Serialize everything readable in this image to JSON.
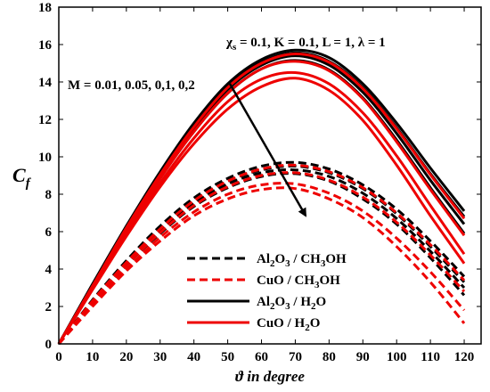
{
  "chart_data": {
    "type": "line",
    "title": "",
    "xlabel": "ϑ in degree",
    "ylabel": "Cf",
    "xlim": [
      0,
      125
    ],
    "ylim": [
      0,
      18
    ],
    "xticks": [
      "0",
      "10",
      "20",
      "30",
      "40",
      "50",
      "60",
      "70",
      "80",
      "90",
      "100",
      "110",
      "120"
    ],
    "yticks": [
      "0",
      "2",
      "4",
      "6",
      "8",
      "10",
      "12",
      "14",
      "16",
      "18"
    ],
    "params_annotation": "χs = 0.1, K = 0.1, L = 1, λ = 1",
    "params_annotation_parts": {
      "chi": "χ",
      "chi_sub": "s",
      "rest": " = 0.1, K = 0.1, L = 1, λ = 1"
    },
    "m_annotation": "M = 0.01, 0.05, 0,1, 0,2",
    "legend": [
      {
        "label": "Al2O3 / CH3OH",
        "color": "#000000",
        "dash": true,
        "parts": [
          {
            "t": "Al"
          },
          {
            "t": "2",
            "sub": true
          },
          {
            "t": "O"
          },
          {
            "t": "3",
            "sub": true
          },
          {
            "t": " / CH"
          },
          {
            "t": "3",
            "sub": true
          },
          {
            "t": "OH"
          }
        ]
      },
      {
        "label": "CuO / CH3OH",
        "color": "#ee0000",
        "dash": true,
        "parts": [
          {
            "t": "CuO / CH"
          },
          {
            "t": "3",
            "sub": true
          },
          {
            "t": "OH"
          }
        ]
      },
      {
        "label": "Al2O3 / H2O",
        "color": "#000000",
        "dash": false,
        "parts": [
          {
            "t": "Al"
          },
          {
            "t": "2",
            "sub": true
          },
          {
            "t": "O"
          },
          {
            "t": "3",
            "sub": true
          },
          {
            "t": " / H"
          },
          {
            "t": "2",
            "sub": true
          },
          {
            "t": "O"
          }
        ]
      },
      {
        "label": "CuO / H2O",
        "color": "#ee0000",
        "dash": false,
        "parts": [
          {
            "t": "CuO / H"
          },
          {
            "t": "2",
            "sub": true
          },
          {
            "t": "O"
          }
        ]
      }
    ],
    "x": [
      0,
      10,
      20,
      30,
      40,
      50,
      60,
      70,
      80,
      90,
      100,
      110,
      120
    ],
    "series": [
      {
        "group": "Al2O3 / CH3OH",
        "color": "#000000",
        "dash": true,
        "values": [
          0,
          2.35,
          4.45,
          6.3,
          7.8,
          8.85,
          9.5,
          9.7,
          9.35,
          8.5,
          7.2,
          5.5,
          3.6
        ]
      },
      {
        "group": "Al2O3 / CH3OH",
        "color": "#000000",
        "dash": true,
        "values": [
          0,
          2.3,
          4.35,
          6.15,
          7.65,
          8.7,
          9.3,
          9.5,
          9.15,
          8.3,
          6.95,
          5.2,
          3.3
        ]
      },
      {
        "group": "Al2O3 / CH3OH",
        "color": "#000000",
        "dash": true,
        "values": [
          0,
          2.25,
          4.3,
          6.05,
          7.5,
          8.55,
          9.15,
          9.3,
          8.95,
          8.05,
          6.7,
          4.95,
          3.0
        ]
      },
      {
        "group": "Al2O3 / CH3OH",
        "color": "#000000",
        "dash": true,
        "values": [
          0,
          2.2,
          4.2,
          5.9,
          7.35,
          8.35,
          8.95,
          9.1,
          8.7,
          7.75,
          6.4,
          4.6,
          2.6
        ]
      },
      {
        "group": "CuO / CH3OH",
        "color": "#ee0000",
        "dash": true,
        "values": [
          0,
          2.3,
          4.35,
          6.15,
          7.65,
          8.7,
          9.35,
          9.55,
          9.2,
          8.35,
          7.0,
          5.3,
          3.4
        ]
      },
      {
        "group": "CuO / CH3OH",
        "color": "#ee0000",
        "dash": true,
        "values": [
          0,
          2.2,
          4.2,
          5.95,
          7.4,
          8.4,
          9.0,
          9.15,
          8.75,
          7.85,
          6.5,
          4.75,
          2.8
        ]
      },
      {
        "group": "CuO / CH3OH",
        "color": "#ee0000",
        "dash": true,
        "values": [
          0,
          2.1,
          4.0,
          5.7,
          7.05,
          8.0,
          8.5,
          8.55,
          8.05,
          7.1,
          5.65,
          3.85,
          1.8
        ]
      },
      {
        "group": "CuO / CH3OH",
        "color": "#ee0000",
        "dash": true,
        "values": [
          0,
          2.0,
          3.9,
          5.5,
          6.85,
          7.75,
          8.25,
          8.3,
          7.75,
          6.75,
          5.2,
          3.3,
          1.1
        ]
      },
      {
        "group": "Al2O3 / H2O",
        "color": "#000000",
        "dash": false,
        "values": [
          0,
          3.2,
          6.3,
          9.2,
          11.8,
          13.9,
          15.2,
          15.7,
          15.3,
          13.9,
          11.8,
          9.4,
          7.1
        ]
      },
      {
        "group": "Al2O3 / H2O",
        "color": "#000000",
        "dash": false,
        "values": [
          0,
          3.15,
          6.25,
          9.1,
          11.65,
          13.75,
          15.05,
          15.55,
          15.1,
          13.7,
          11.55,
          9.1,
          6.8
        ]
      },
      {
        "group": "Al2O3 / H2O",
        "color": "#000000",
        "dash": false,
        "values": [
          0,
          3.1,
          6.15,
          9.0,
          11.5,
          13.6,
          14.9,
          15.4,
          14.9,
          13.45,
          11.25,
          8.75,
          6.4
        ]
      },
      {
        "group": "Al2O3 / H2O",
        "color": "#000000",
        "dash": false,
        "values": [
          0,
          3.05,
          6.05,
          8.85,
          11.35,
          13.4,
          14.7,
          15.15,
          14.65,
          13.15,
          10.9,
          8.35,
          5.9
        ]
      },
      {
        "group": "CuO / H2O",
        "color": "#ee0000",
        "dash": false,
        "values": [
          0,
          3.1,
          6.2,
          9.05,
          11.6,
          13.7,
          15.0,
          15.5,
          15.05,
          13.65,
          11.5,
          9.05,
          6.7
        ]
      },
      {
        "group": "CuO / H2O",
        "color": "#ee0000",
        "dash": false,
        "values": [
          0,
          3.05,
          6.05,
          8.85,
          11.35,
          13.4,
          14.7,
          15.1,
          14.6,
          13.1,
          10.8,
          8.25,
          5.8
        ]
      },
      {
        "group": "CuO / H2O",
        "color": "#ee0000",
        "dash": false,
        "values": [
          0,
          2.95,
          5.9,
          8.6,
          11.0,
          12.95,
          14.15,
          14.5,
          13.9,
          12.35,
          10.05,
          7.4,
          4.8
        ]
      },
      {
        "group": "CuO / H2O",
        "color": "#ee0000",
        "dash": false,
        "values": [
          0,
          2.9,
          5.75,
          8.4,
          10.7,
          12.55,
          13.75,
          14.2,
          13.55,
          11.95,
          9.55,
          6.85,
          4.3
        ]
      }
    ]
  }
}
